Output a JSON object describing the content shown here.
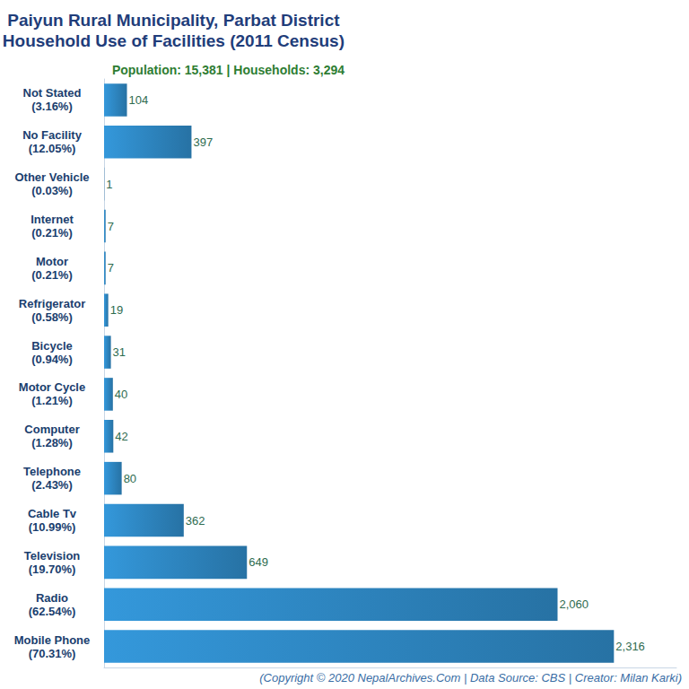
{
  "chart_data": {
    "type": "bar",
    "orientation": "horizontal",
    "title": "Paiyun Rural Municipality, Parbat District\nHousehold Use of Facilities (2011 Census)",
    "subtitle": "Population: 15,381 | Households: 3,294",
    "annotations": [
      "(Copyright © 2020 NepalArchives.Com | Data Source: CBS | Creator: Milan Karki)"
    ],
    "categories": [
      "Not Stated\n(3.16%)",
      "No Facility\n(12.05%)",
      "Other Vehicle\n(0.03%)",
      "Internet\n(0.21%)",
      "Motor\n(0.21%)",
      "Refrigerator\n(0.58%)",
      "Bicycle\n(0.94%)",
      "Motor Cycle\n(1.21%)",
      "Computer\n(1.28%)",
      "Telephone\n(2.43%)",
      "Cable Tv\n(10.99%)",
      "Television\n(19.70%)",
      "Radio\n(62.54%)",
      "Mobile Phone\n(70.31%)"
    ],
    "values": [
      104,
      397,
      1,
      7,
      7,
      19,
      31,
      40,
      42,
      80,
      362,
      649,
      2060,
      2316
    ],
    "value_labels": [
      "104",
      "397",
      "1",
      "7",
      "7",
      "19",
      "31",
      "40",
      "42",
      "80",
      "362",
      "649",
      "2,060",
      "2,316"
    ],
    "color": "#3498db",
    "xlim": [
      0,
      2600
    ],
    "xticks": [],
    "grid": false,
    "data_labels": true,
    "tick_labels": "y"
  }
}
